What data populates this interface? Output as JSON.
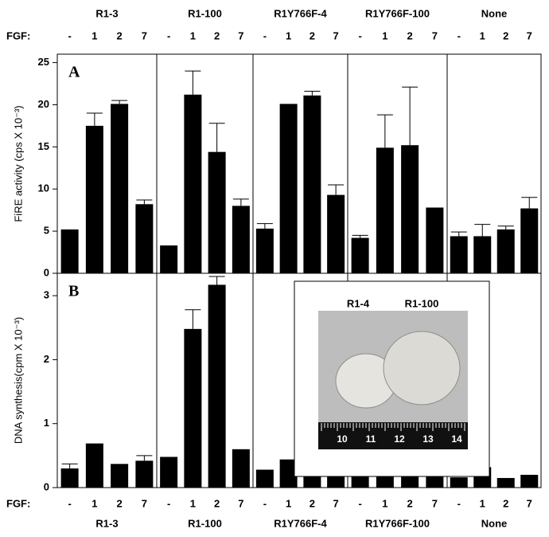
{
  "groups": [
    "R1-3",
    "R1-100",
    "R1Y766F-4",
    "R1Y766F-100",
    "None"
  ],
  "fgf_label": "FGF:",
  "fgf_doses": [
    "-",
    "1",
    "2",
    "7"
  ],
  "chart_data": [
    {
      "type": "bar",
      "panel": "A",
      "ylabel": "FiRE activity (cps X 10⁻³)",
      "color": "#000000",
      "ylim": [
        0,
        26
      ],
      "yticks": [
        0,
        5,
        10,
        15,
        20,
        25
      ],
      "values": [
        5.2,
        17.5,
        20.1,
        8.2,
        3.3,
        21.2,
        14.4,
        8.0,
        5.3,
        20.1,
        21.1,
        9.3,
        4.2,
        14.9,
        15.2,
        7.8,
        4.4,
        4.4,
        5.2,
        7.7
      ],
      "errors": [
        null,
        1.5,
        0.4,
        0.5,
        null,
        2.8,
        3.4,
        0.8,
        0.6,
        null,
        0.5,
        1.2,
        0.3,
        3.9,
        6.9,
        null,
        0.5,
        1.4,
        0.4,
        1.3
      ]
    },
    {
      "type": "bar",
      "panel": "B",
      "ylabel": "DNA synthesis(cpm X 10⁻³)",
      "color": "#000000",
      "ylim": [
        0,
        3.35
      ],
      "yticks": [
        0,
        1,
        2,
        3
      ],
      "values": [
        0.3,
        0.69,
        0.37,
        0.42,
        0.48,
        2.48,
        3.17,
        0.6,
        0.28,
        0.44,
        0.18,
        0.34,
        0.28,
        0.43,
        0.18,
        0.34,
        0.16,
        0.32,
        0.15,
        0.2
      ],
      "errors": [
        0.07,
        null,
        null,
        0.08,
        null,
        0.3,
        0.13,
        null,
        null,
        null,
        null,
        null,
        null,
        null,
        null,
        null,
        null,
        null,
        null,
        null
      ]
    }
  ],
  "inset": {
    "labels": [
      "R1-4",
      "R1-100"
    ],
    "ruler": [
      "10",
      "11",
      "12",
      "13",
      "14"
    ]
  }
}
